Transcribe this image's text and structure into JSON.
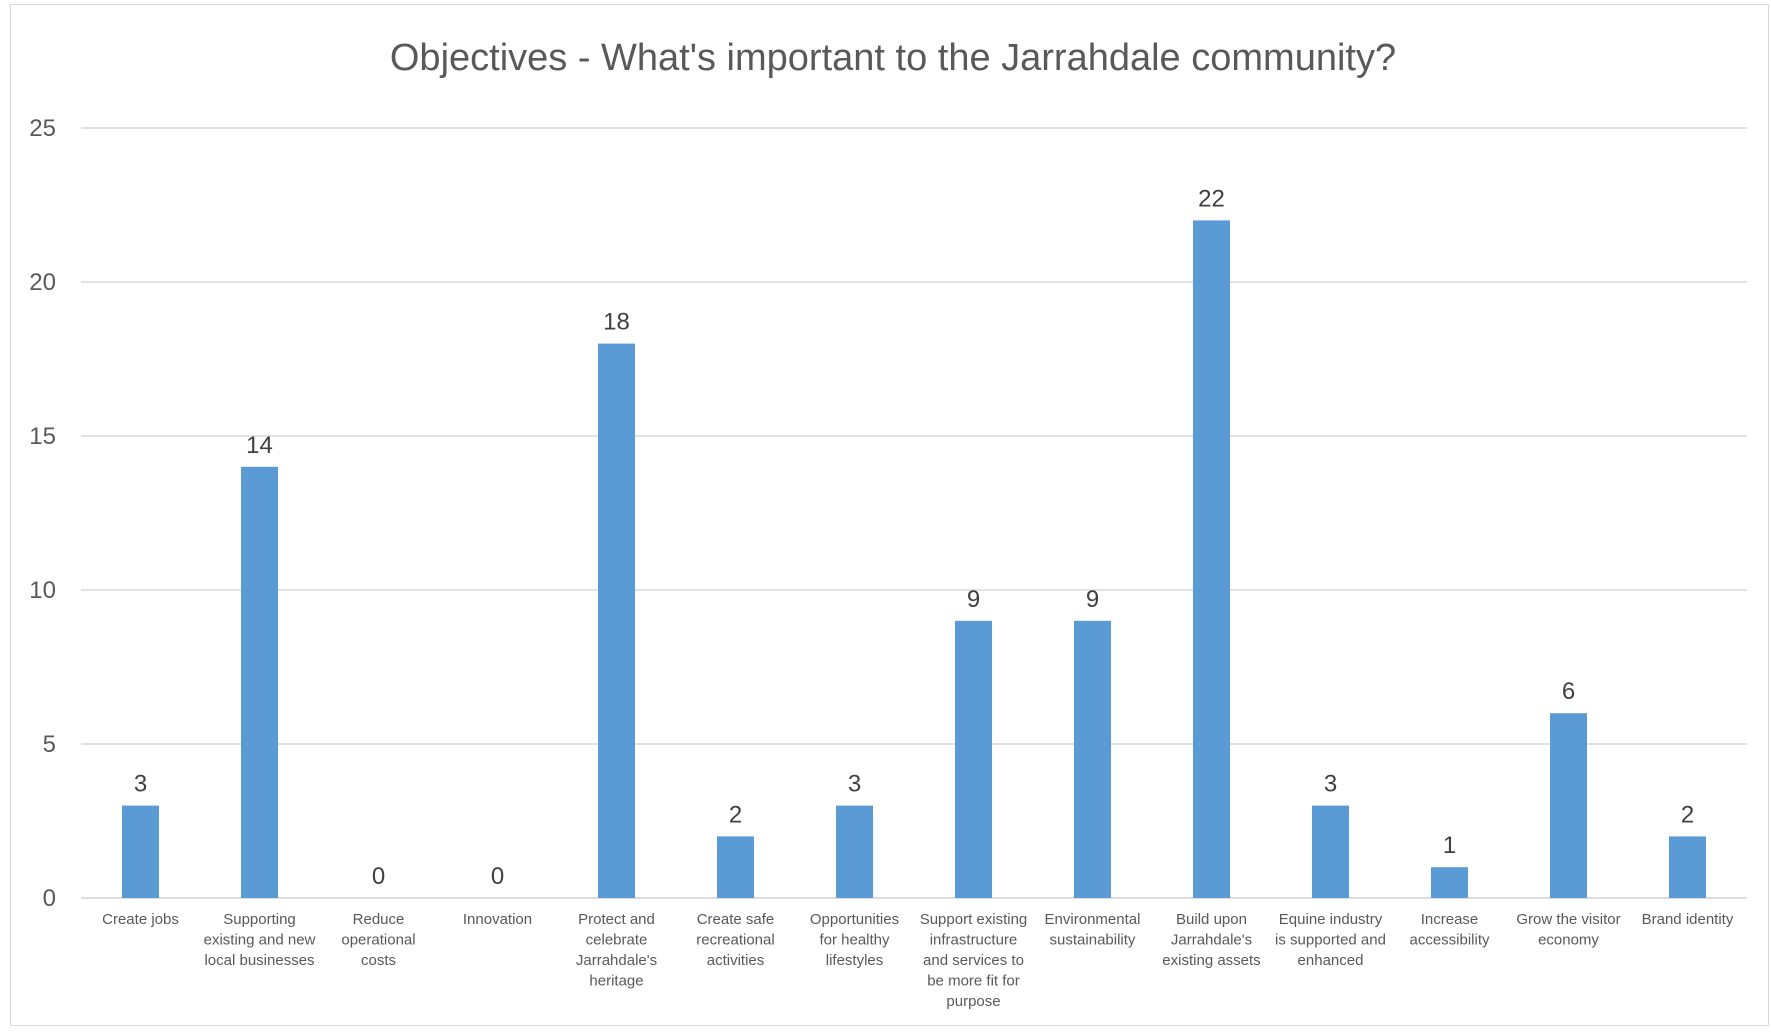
{
  "chart_data": {
    "type": "bar",
    "title": "Objectives - What's important to the Jarrahdale community?",
    "xlabel": "",
    "ylabel": "",
    "ylim": [
      0,
      25
    ],
    "yticks": [
      "0",
      "5",
      "10",
      "15",
      "20",
      "25"
    ],
    "grid": true,
    "legend": "none",
    "bar_color": "#5b9bd5",
    "categories": [
      "Create jobs",
      "Supporting existing and new local businesses",
      "Reduce operational costs",
      "Innovation",
      "Protect and celebrate Jarrahdale's heritage",
      "Create safe recreational activities",
      "Opportunities for healthy lifestyles",
      "Support existing infrastructure and services to be more fit for purpose",
      "Environmental sustainability",
      "Build upon Jarrahdale's existing assets",
      "Equine industry is supported and enhanced",
      "Increase accessibility",
      "Grow the visitor economy",
      "Brand identity"
    ],
    "values": [
      3,
      14,
      0,
      0,
      18,
      2,
      3,
      9,
      9,
      22,
      3,
      1,
      6,
      2
    ],
    "data_labels": [
      "3",
      "14",
      "0",
      "0",
      "18",
      "2",
      "3",
      "9",
      "9",
      "22",
      "3",
      "1",
      "6",
      "2"
    ],
    "category_label_lines": [
      [
        "Create jobs"
      ],
      [
        "Supporting",
        "existing and new",
        "local businesses"
      ],
      [
        "Reduce",
        "operational",
        "costs"
      ],
      [
        "Innovation"
      ],
      [
        "Protect and",
        "celebrate",
        "Jarrahdale's",
        "heritage"
      ],
      [
        "Create safe",
        "recreational",
        "activities"
      ],
      [
        "Opportunities",
        "for healthy",
        "lifestyles"
      ],
      [
        "Support existing",
        "infrastructure",
        "and services to",
        "be more fit for",
        "purpose"
      ],
      [
        "Environmental",
        "sustainability"
      ],
      [
        "Build upon",
        "Jarrahdale's",
        "existing assets"
      ],
      [
        "Equine industry",
        "is supported and",
        "enhanced"
      ],
      [
        "Increase",
        "accessibility"
      ],
      [
        "Grow the visitor",
        "economy"
      ],
      [
        "Brand identity"
      ]
    ]
  }
}
